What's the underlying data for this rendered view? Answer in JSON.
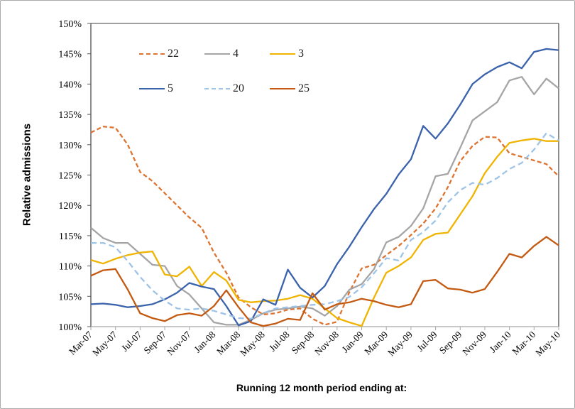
{
  "y_axis": {
    "title": "Relative admissions",
    "min": 100,
    "max": 150,
    "step": 5,
    "tick_labels": [
      "100%",
      "105%",
      "110%",
      "115%",
      "120%",
      "125%",
      "130%",
      "135%",
      "140%",
      "145%",
      "150%"
    ]
  },
  "x_axis": {
    "title": "Running 12 month period ending at:",
    "tick_every": 2,
    "tick_labels": [
      "Mar-07",
      "May-07",
      "Jul-07",
      "Sep-07",
      "Nov-07",
      "Jan-08",
      "Mar-08",
      "May-08",
      "Jul-08",
      "Sep-08",
      "Nov-08",
      "Jan-09",
      "Mar-09",
      "May-09",
      "Jul-09",
      "Sep-09",
      "Nov-09",
      "Jan-10",
      "Mar-10",
      "May-10"
    ]
  },
  "legend": {
    "rows": [
      [
        "22",
        "4",
        "3"
      ],
      [
        "5",
        "20",
        "25"
      ]
    ],
    "position": "top-left"
  },
  "colors": {
    "frame_dark": "#3f3f3f",
    "frame_light": "#a6a6a6",
    "tick": "#595959",
    "text": "#000000"
  },
  "chart_data": {
    "type": "line",
    "title": "",
    "xlabel": "Running 12 month period ending at:",
    "ylabel": "Relative admissions",
    "ylim": [
      100,
      150
    ],
    "grid": false,
    "legend_position": "top-left",
    "x": [
      "Mar-07",
      "Apr-07",
      "May-07",
      "Jun-07",
      "Jul-07",
      "Aug-07",
      "Sep-07",
      "Oct-07",
      "Nov-07",
      "Dec-07",
      "Jan-08",
      "Feb-08",
      "Mar-08",
      "Apr-08",
      "May-08",
      "Jun-08",
      "Jul-08",
      "Aug-08",
      "Sep-08",
      "Oct-08",
      "Nov-08",
      "Dec-08",
      "Jan-09",
      "Feb-09",
      "Mar-09",
      "Apr-09",
      "May-09",
      "Jun-09",
      "Jul-09",
      "Aug-09",
      "Sep-09",
      "Oct-09",
      "Nov-09",
      "Dec-09",
      "Jan-10",
      "Feb-10",
      "Mar-10",
      "Apr-10",
      "May-10"
    ],
    "series": [
      {
        "name": "22",
        "color": "#dd7431",
        "dash": "dashed",
        "values": [
          132.0,
          133.0,
          132.8,
          130.0,
          125.5,
          124.0,
          122.0,
          120.0,
          118.0,
          116.3,
          112.2,
          108.9,
          104.8,
          103.2,
          102.0,
          102.2,
          102.8,
          103.0,
          101.3,
          100.3,
          100.8,
          105.7,
          109.6,
          110.2,
          111.8,
          113.3,
          115.1,
          117.0,
          119.5,
          123.0,
          127.3,
          129.8,
          131.3,
          131.2,
          128.6,
          128.0,
          127.4,
          126.8,
          124.8
        ]
      },
      {
        "name": "4",
        "color": "#a5a5a5",
        "dash": "solid",
        "values": [
          116.3,
          114.6,
          113.8,
          113.8,
          112.0,
          110.2,
          110.0,
          106.7,
          105.3,
          103.0,
          100.7,
          100.3,
          100.3,
          101.1,
          102.2,
          102.8,
          103.0,
          103.3,
          103.0,
          101.8,
          103.4,
          106.1,
          107.0,
          109.5,
          113.9,
          114.8,
          116.6,
          119.5,
          124.8,
          125.2,
          129.5,
          134.0,
          135.5,
          137.0,
          140.6,
          141.2,
          138.3,
          140.9,
          139.3
        ]
      },
      {
        "name": "3",
        "color": "#f0b400",
        "dash": "solid",
        "values": [
          111.0,
          110.4,
          111.2,
          111.8,
          112.2,
          112.4,
          108.6,
          108.3,
          109.9,
          106.7,
          109.0,
          107.6,
          104.4,
          104.0,
          104.2,
          104.3,
          104.6,
          105.2,
          104.6,
          103.0,
          101.4,
          100.7,
          100.1,
          104.8,
          108.9,
          110.0,
          111.4,
          114.3,
          115.3,
          115.5,
          118.5,
          121.5,
          125.3,
          128.0,
          130.3,
          130.7,
          131.0,
          130.6,
          130.6
        ]
      },
      {
        "name": "5",
        "color": "#3a63ac",
        "dash": "solid",
        "values": [
          103.7,
          103.8,
          103.6,
          103.2,
          103.4,
          103.7,
          104.5,
          105.6,
          107.2,
          106.6,
          106.2,
          103.4,
          100.2,
          100.9,
          104.5,
          103.6,
          109.4,
          106.4,
          104.8,
          106.7,
          110.3,
          113.2,
          116.4,
          119.4,
          121.9,
          125.1,
          127.6,
          133.1,
          131.0,
          133.5,
          136.6,
          140.0,
          141.6,
          142.8,
          143.6,
          142.6,
          145.3,
          145.8,
          145.6
        ]
      },
      {
        "name": "20",
        "color": "#9dc3e6",
        "dash": "dashed",
        "values": [
          113.8,
          113.8,
          113.1,
          110.8,
          108.2,
          106.0,
          104.3,
          103.0,
          102.8,
          103.0,
          102.6,
          102.0,
          101.4,
          101.3,
          102.2,
          103.0,
          103.2,
          103.4,
          103.6,
          103.7,
          104.2,
          104.9,
          106.5,
          108.8,
          111.3,
          110.9,
          114.3,
          115.6,
          117.5,
          120.5,
          122.5,
          123.7,
          123.4,
          124.5,
          126.0,
          127.0,
          129.2,
          131.9,
          130.7
        ]
      },
      {
        "name": "25",
        "color": "#c45a11",
        "dash": "solid",
        "values": [
          108.4,
          109.3,
          109.5,
          106.1,
          102.2,
          101.4,
          100.9,
          101.9,
          102.2,
          101.8,
          103.4,
          106.0,
          103.2,
          100.7,
          100.1,
          100.5,
          101.3,
          101.1,
          105.5,
          102.8,
          103.7,
          104.0,
          104.6,
          104.2,
          103.6,
          103.2,
          103.7,
          107.5,
          107.7,
          106.3,
          106.1,
          105.6,
          106.2,
          109.0,
          112.0,
          111.4,
          113.3,
          114.8,
          113.4
        ]
      }
    ]
  }
}
